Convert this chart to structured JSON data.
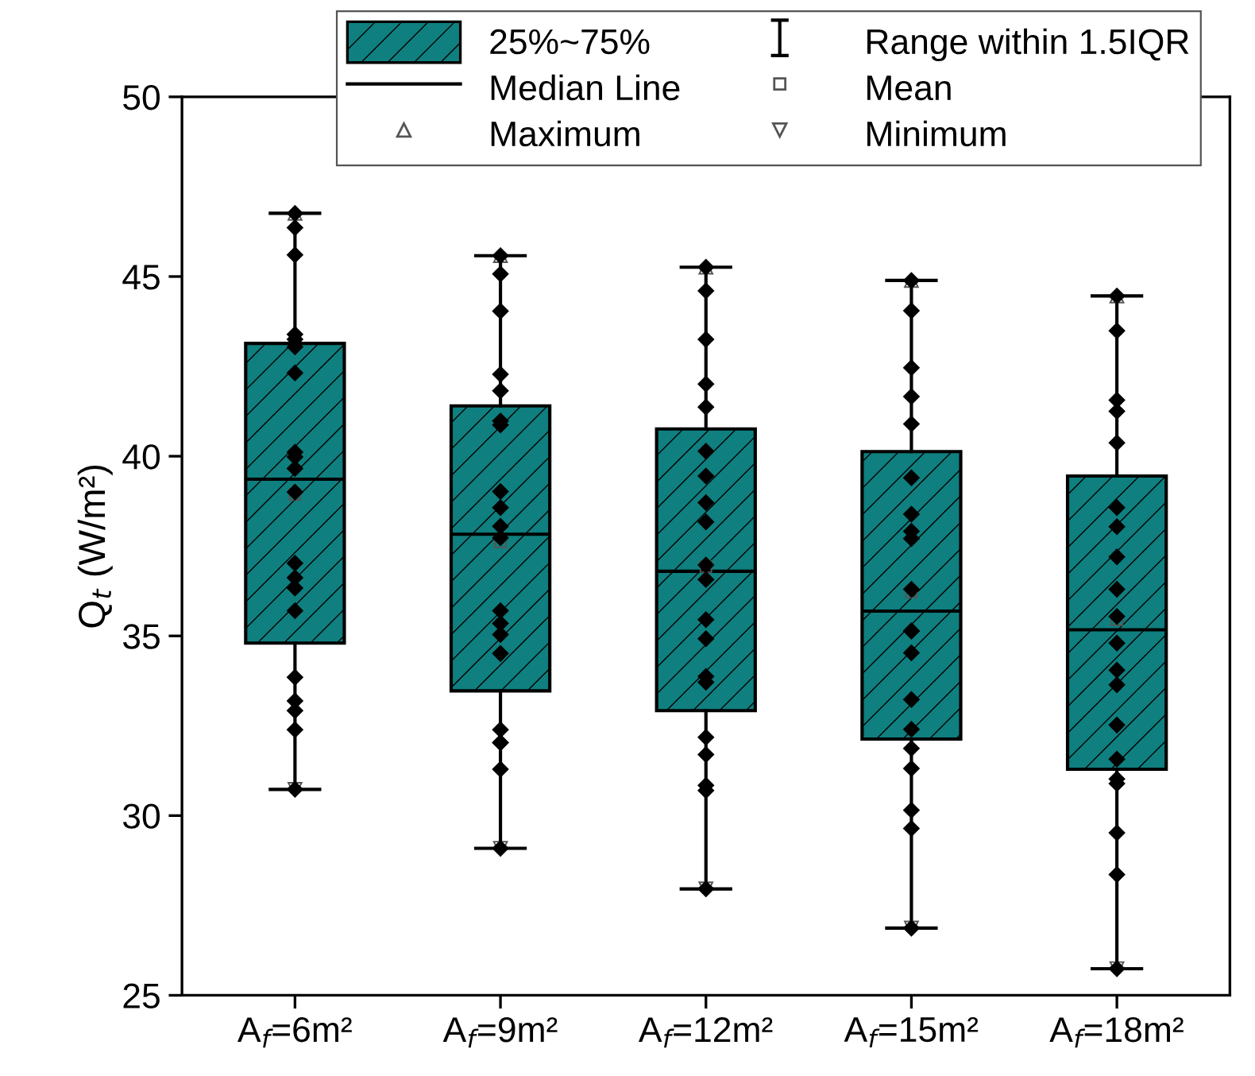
{
  "chart_data": {
    "type": "box",
    "categories": [
      "A$_{f}$=6m²",
      "A$_{f}$=9m²",
      "A$_{f}$=12m²",
      "A$_{f}$=15m²",
      "A$_{f}$=18m²"
    ],
    "ylabel": "Q$_{t}$ (W/m²)",
    "ylim": [
      25,
      50
    ],
    "yticks": [
      25,
      30,
      35,
      40,
      45,
      50
    ],
    "grid": false,
    "legend": "top",
    "annotations": [
      "Range within 1.5IQR",
      "Median Line",
      "Mean",
      "Maximum",
      "Minimum"
    ],
    "series": [
      {
        "type": "box",
        "name": "25%~75%",
        "color": "#0f7f7f",
        "boxes": [
          {
            "low": 30.73,
            "q1": 34.8,
            "median": 39.36,
            "q3": 43.14,
            "high": 46.76,
            "mean": 38.94
          },
          {
            "low": 29.09,
            "q1": 33.47,
            "median": 37.83,
            "q3": 41.4,
            "high": 45.58,
            "mean": 37.62
          },
          {
            "low": 27.96,
            "q1": 32.92,
            "median": 36.8,
            "q3": 40.76,
            "high": 45.26,
            "mean": 36.93
          },
          {
            "low": 26.87,
            "q1": 32.13,
            "median": 35.69,
            "q3": 40.13,
            "high": 44.89,
            "mean": 36.22
          },
          {
            "low": 25.74,
            "q1": 31.29,
            "median": 35.17,
            "q3": 39.45,
            "high": 44.46,
            "mean": 35.45
          }
        ]
      },
      {
        "type": "scatter",
        "color": "#000000",
        "marker": "diamond",
        "x": [
          "A$_{f}$=6m²",
          "A$_{f}$=6m²",
          "A$_{f}$=6m²",
          "A$_{f}$=6m²",
          "A$_{f}$=6m²",
          "A$_{f}$=6m²",
          "A$_{f}$=6m²",
          "A$_{f}$=6m²",
          "A$_{f}$=6m²",
          "A$_{f}$=6m²",
          "A$_{f}$=6m²",
          "A$_{f}$=6m²",
          "A$_{f}$=6m²",
          "A$_{f}$=6m²",
          "A$_{f}$=6m²",
          "A$_{f}$=6m²",
          "A$_{f}$=6m²",
          "A$_{f}$=6m²",
          "A$_{f}$=6m²",
          "A$_{f}$=6m²",
          "A$_{f}$=9m²",
          "A$_{f}$=9m²",
          "A$_{f}$=9m²",
          "A$_{f}$=9m²",
          "A$_{f}$=9m²",
          "A$_{f}$=9m²",
          "A$_{f}$=9m²",
          "A$_{f}$=9m²",
          "A$_{f}$=9m²",
          "A$_{f}$=9m²",
          "A$_{f}$=9m²",
          "A$_{f}$=9m²",
          "A$_{f}$=9m²",
          "A$_{f}$=9m²",
          "A$_{f}$=9m²",
          "A$_{f}$=9m²",
          "A$_{f}$=9m²",
          "A$_{f}$=9m²",
          "A$_{f}$=9m²",
          "A$_{f}$=9m²",
          "A$_{f}$=12m²",
          "A$_{f}$=12m²",
          "A$_{f}$=12m²",
          "A$_{f}$=12m²",
          "A$_{f}$=12m²",
          "A$_{f}$=12m²",
          "A$_{f}$=12m²",
          "A$_{f}$=12m²",
          "A$_{f}$=12m²",
          "A$_{f}$=12m²",
          "A$_{f}$=12m²",
          "A$_{f}$=12m²",
          "A$_{f}$=12m²",
          "A$_{f}$=12m²",
          "A$_{f}$=12m²",
          "A$_{f}$=12m²",
          "A$_{f}$=12m²",
          "A$_{f}$=12m²",
          "A$_{f}$=12m²",
          "A$_{f}$=12m²",
          "A$_{f}$=15m²",
          "A$_{f}$=15m²",
          "A$_{f}$=15m²",
          "A$_{f}$=15m²",
          "A$_{f}$=15m²",
          "A$_{f}$=15m²",
          "A$_{f}$=15m²",
          "A$_{f}$=15m²",
          "A$_{f}$=15m²",
          "A$_{f}$=15m²",
          "A$_{f}$=15m²",
          "A$_{f}$=15m²",
          "A$_{f}$=15m²",
          "A$_{f}$=15m²",
          "A$_{f}$=15m²",
          "A$_{f}$=15m²",
          "A$_{f}$=15m²",
          "A$_{f}$=15m²",
          "A$_{f}$=15m²",
          "A$_{f}$=15m²",
          "A$_{f}$=18m²",
          "A$_{f}$=18m²",
          "A$_{f}$=18m²",
          "A$_{f}$=18m²",
          "A$_{f}$=18m²",
          "A$_{f}$=18m²",
          "A$_{f}$=18m²",
          "A$_{f}$=18m²",
          "A$_{f}$=18m²",
          "A$_{f}$=18m²",
          "A$_{f}$=18m²",
          "A$_{f}$=18m²",
          "A$_{f}$=18m²",
          "A$_{f}$=18m²",
          "A$_{f}$=18m²",
          "A$_{f}$=18m²",
          "A$_{f}$=18m²",
          "A$_{f}$=18m²",
          "A$_{f}$=18m²",
          "A$_{f}$=18m²"
        ],
        "values": [
          46.76,
          46.36,
          45.6,
          43.39,
          43.25,
          43.04,
          42.32,
          40.11,
          39.98,
          39.66,
          39.0,
          37.02,
          36.62,
          36.33,
          35.7,
          33.85,
          33.19,
          32.92,
          32.39,
          30.73,
          45.58,
          45.07,
          44.04,
          42.28,
          41.82,
          40.98,
          40.87,
          39.02,
          38.57,
          38.05,
          37.73,
          35.7,
          35.35,
          35.04,
          34.51,
          32.39,
          32.03,
          32.03,
          31.29,
          29.09,
          45.26,
          44.6,
          43.25,
          42.01,
          41.37,
          40.14,
          39.45,
          38.71,
          38.17,
          36.97,
          36.57,
          35.45,
          34.92,
          33.87,
          33.71,
          32.18,
          31.7,
          30.84,
          30.7,
          27.96,
          44.89,
          44.05,
          42.46,
          41.66,
          40.9,
          39.4,
          38.39,
          37.91,
          37.71,
          36.3,
          35.14,
          35.14,
          34.53,
          33.23,
          32.4,
          31.87,
          31.31,
          30.15,
          29.64,
          26.87,
          44.46,
          43.49,
          41.56,
          41.25,
          40.37,
          38.57,
          38.04,
          37.2,
          36.3,
          35.54,
          34.8,
          34.05,
          33.64,
          32.52,
          31.57,
          31.02,
          30.89,
          29.52,
          28.36,
          25.74
        ]
      }
    ]
  }
}
